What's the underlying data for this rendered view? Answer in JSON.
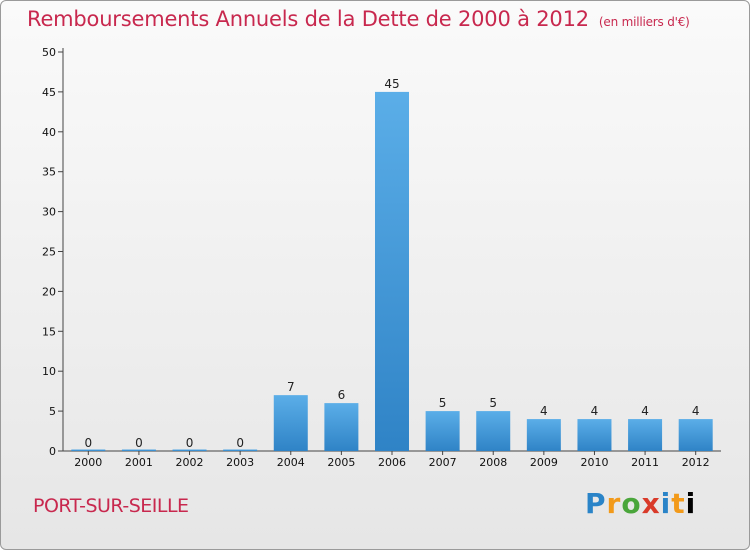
{
  "title": "Remboursements Annuels de la Dette de 2000 à 2012",
  "subtitle": "(en milliers d'€)",
  "commune": "PORT-SUR-SEILLE",
  "logo": "Proxiti",
  "colors": {
    "bar_top": "#5baee8",
    "bar_bottom": "#2f83c6",
    "accent": "#c8284e"
  },
  "chart_data": {
    "type": "bar",
    "title": "Remboursements Annuels de la Dette de 2000 à 2012",
    "subtitle": "(en milliers d'€)",
    "categories": [
      "2000",
      "2001",
      "2002",
      "2003",
      "2004",
      "2005",
      "2006",
      "2007",
      "2008",
      "2009",
      "2010",
      "2011",
      "2012"
    ],
    "values": [
      0,
      0,
      0,
      0,
      7,
      6,
      45,
      5,
      5,
      4,
      4,
      4,
      4
    ],
    "ylim": [
      0,
      50
    ],
    "yticks": [
      0,
      5,
      10,
      15,
      20,
      25,
      30,
      35,
      40,
      45,
      50
    ],
    "grid": false,
    "legend": "none"
  }
}
